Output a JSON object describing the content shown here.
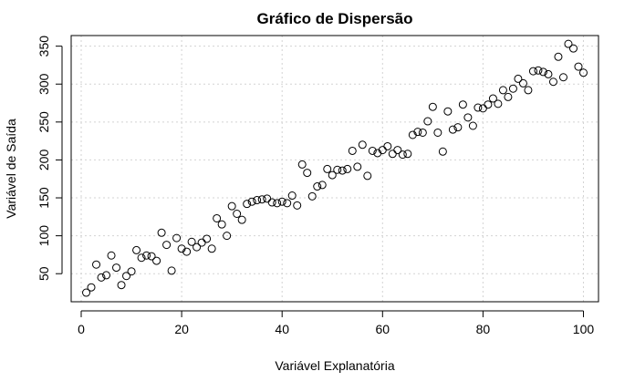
{
  "chart_data": {
    "type": "scatter",
    "title": "Gráfico de Dispersão",
    "xlabel": "Variável Explanatória",
    "ylabel": "Variável de Saída",
    "xlim": [
      -2,
      103
    ],
    "ylim": [
      13,
      364
    ],
    "xticks": [
      0,
      20,
      40,
      60,
      80,
      100
    ],
    "yticks": [
      50,
      100,
      150,
      200,
      250,
      300,
      350
    ],
    "grid": true,
    "series": [
      {
        "x": [
          1,
          2,
          3,
          4,
          5,
          6,
          7,
          8,
          9,
          10,
          11,
          12,
          13,
          14,
          15,
          16,
          17,
          18,
          19,
          20,
          21,
          22,
          23,
          24,
          25,
          26,
          27,
          28,
          29,
          30,
          31,
          32,
          33,
          34,
          35,
          36,
          37,
          38,
          39,
          40,
          41,
          42,
          43,
          44,
          45,
          46,
          47,
          48,
          49,
          50,
          51,
          52,
          53,
          54,
          55,
          56,
          57,
          58,
          59,
          60,
          61,
          62,
          63,
          64,
          65,
          66,
          67,
          68,
          69,
          70,
          71,
          72,
          73,
          74,
          75,
          76,
          77,
          78,
          79,
          80,
          81,
          82,
          83,
          84,
          85,
          86,
          87,
          88,
          89,
          90,
          91,
          92,
          93,
          94,
          95,
          96,
          97,
          98,
          99,
          100
        ],
        "y": [
          25,
          32,
          62,
          45,
          48,
          74,
          58,
          35,
          47,
          53,
          81,
          71,
          74,
          73,
          67,
          104,
          88,
          54,
          97,
          83,
          79,
          92,
          85,
          91,
          96,
          83,
          123,
          115,
          100,
          139,
          129,
          121,
          142,
          145,
          147,
          148,
          149,
          144,
          143,
          145,
          143,
          153,
          140,
          194,
          183,
          152,
          165,
          167,
          188,
          180,
          187,
          186,
          188,
          212,
          191,
          220,
          179,
          212,
          209,
          213,
          218,
          208,
          213,
          207,
          208,
          233,
          237,
          236,
          251,
          270,
          236,
          211,
          264,
          240,
          243,
          273,
          256,
          245,
          269,
          268,
          273,
          281,
          274,
          292,
          283,
          294,
          307,
          301,
          292,
          317,
          318,
          316,
          313,
          303,
          336,
          309,
          353,
          347,
          323,
          315
        ]
      }
    ]
  }
}
